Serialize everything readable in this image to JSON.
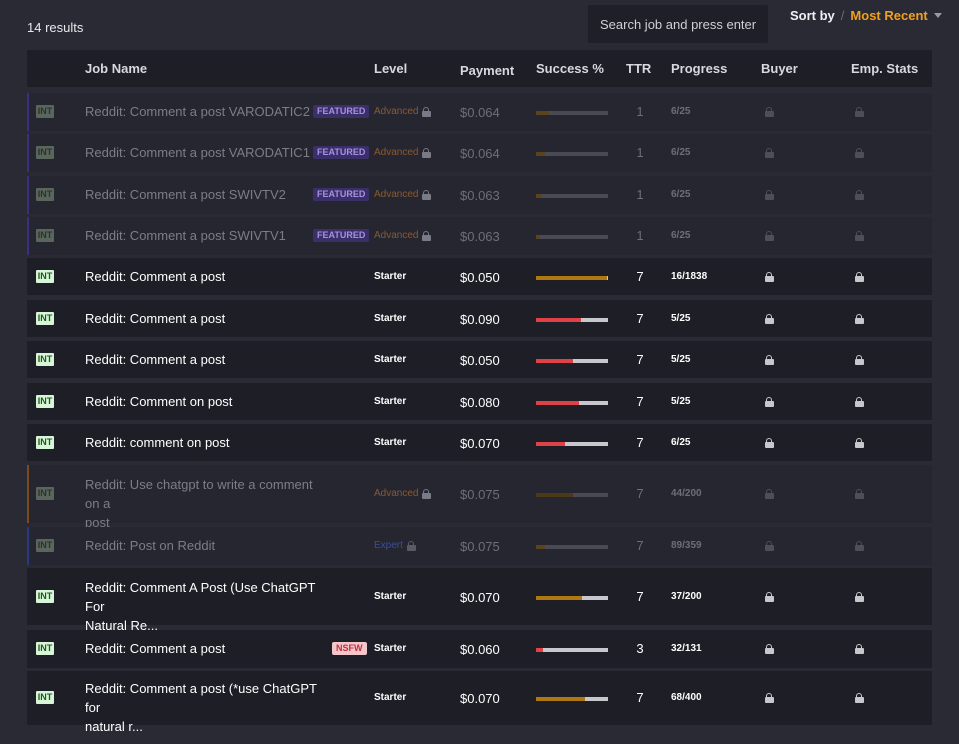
{
  "results_text": "14 results",
  "search": {
    "placeholder": "Search job and press enter..."
  },
  "sort": {
    "label": "Sort by",
    "separator": "/",
    "value": "Most Recent"
  },
  "headers": [
    "Job Name",
    "Level",
    "Payment",
    "Success %",
    "TTR",
    "Progress",
    "Buyer",
    "Emp. Stats"
  ],
  "rows": [
    {
      "tag": "INT",
      "name": "Reddit: Comment a post VARODATIC2",
      "name2": "",
      "badge": "FEATURED",
      "level": "Advanced",
      "level_locked": true,
      "payment": "$0.064",
      "success": 0.18,
      "ttr": "1",
      "progress": "6/25",
      "dim": true
    },
    {
      "tag": "INT",
      "name": "Reddit: Comment a post VARODATIC1",
      "name2": "",
      "badge": "FEATURED",
      "level": "Advanced",
      "level_locked": true,
      "payment": "$0.064",
      "success": 0.12,
      "ttr": "1",
      "progress": "6/25",
      "dim": true
    },
    {
      "tag": "INT",
      "name": "Reddit: Comment a post SWIVTV2",
      "name2": "",
      "badge": "FEATURED",
      "level": "Advanced",
      "level_locked": true,
      "payment": "$0.063",
      "success": 0.08,
      "ttr": "1",
      "progress": "6/25",
      "dim": true
    },
    {
      "tag": "INT",
      "name": "Reddit: Comment a post SWIVTV1",
      "name2": "",
      "badge": "FEATURED",
      "level": "Advanced",
      "level_locked": true,
      "payment": "$0.063",
      "success": 0.05,
      "ttr": "1",
      "progress": "6/25",
      "dim": true
    },
    {
      "tag": "INT",
      "name": "Reddit: Comment a post",
      "name2": "",
      "badge": "",
      "level": "Starter",
      "level_locked": false,
      "payment": "$0.050",
      "success": 0.98,
      "ttr": "7",
      "progress": "16/1838",
      "dim": false
    },
    {
      "tag": "INT",
      "name": "Reddit: Comment a post",
      "name2": "",
      "badge": "",
      "level": "Starter",
      "level_locked": false,
      "payment": "$0.090",
      "success": 0.63,
      "ttr": "7",
      "progress": "5/25",
      "dim": false
    },
    {
      "tag": "INT",
      "name": "Reddit: Comment a post",
      "name2": "",
      "badge": "",
      "level": "Starter",
      "level_locked": false,
      "payment": "$0.050",
      "success": 0.52,
      "ttr": "7",
      "progress": "5/25",
      "dim": false
    },
    {
      "tag": "INT",
      "name": "Reddit: Comment on post",
      "name2": "",
      "badge": "",
      "level": "Starter",
      "level_locked": false,
      "payment": "$0.080",
      "success": 0.6,
      "ttr": "7",
      "progress": "5/25",
      "dim": false
    },
    {
      "tag": "INT",
      "name": "Reddit: comment on post",
      "name2": "",
      "badge": "",
      "level": "Starter",
      "level_locked": false,
      "payment": "$0.070",
      "success": 0.4,
      "ttr": "7",
      "progress": "6/25",
      "dim": false
    },
    {
      "tag": "INT",
      "name": "Reddit: Use chatgpt to write a comment on a",
      "name2": "post",
      "badge": "",
      "level": "Advanced",
      "level_locked": true,
      "payment": "$0.075",
      "success": 0.52,
      "ttr": "7",
      "progress": "44/200",
      "dim": true
    },
    {
      "tag": "INT",
      "name": "Reddit: Post on Reddit",
      "name2": "",
      "badge": "",
      "level": "Expert",
      "level_locked": true,
      "payment": "$0.075",
      "success": 0.12,
      "ttr": "7",
      "progress": "89/359",
      "dim": true
    },
    {
      "tag": "INT",
      "name": "Reddit: Comment A Post (Use ChatGPT For",
      "name2": "Natural Re...",
      "badge": "",
      "level": "Starter",
      "level_locked": false,
      "payment": "$0.070",
      "success": 0.64,
      "ttr": "7",
      "progress": "37/200",
      "dim": false
    },
    {
      "tag": "INT",
      "name": "Reddit: Comment a post",
      "name2": "",
      "badge": "NSFW",
      "level": "Starter",
      "level_locked": false,
      "payment": "$0.060",
      "success": 0.1,
      "ttr": "3",
      "progress": "32/131",
      "dim": false
    },
    {
      "tag": "INT",
      "name": "Reddit: Comment a post (*use ChatGPT for",
      "name2": "natural r...",
      "badge": "",
      "level": "Starter",
      "level_locked": false,
      "payment": "$0.070",
      "success": 0.68,
      "ttr": "7",
      "progress": "68/400",
      "dim": false
    }
  ],
  "colors": {
    "accent": "#f0a020",
    "success_red": "#e04048",
    "success_orange": "#b07810",
    "advanced": "#8a5a30",
    "expert": "#3a4e9a",
    "featured_border": "#3a3080"
  },
  "icons": {
    "lock": "lock-icon",
    "caret": "chevron-down-icon"
  }
}
